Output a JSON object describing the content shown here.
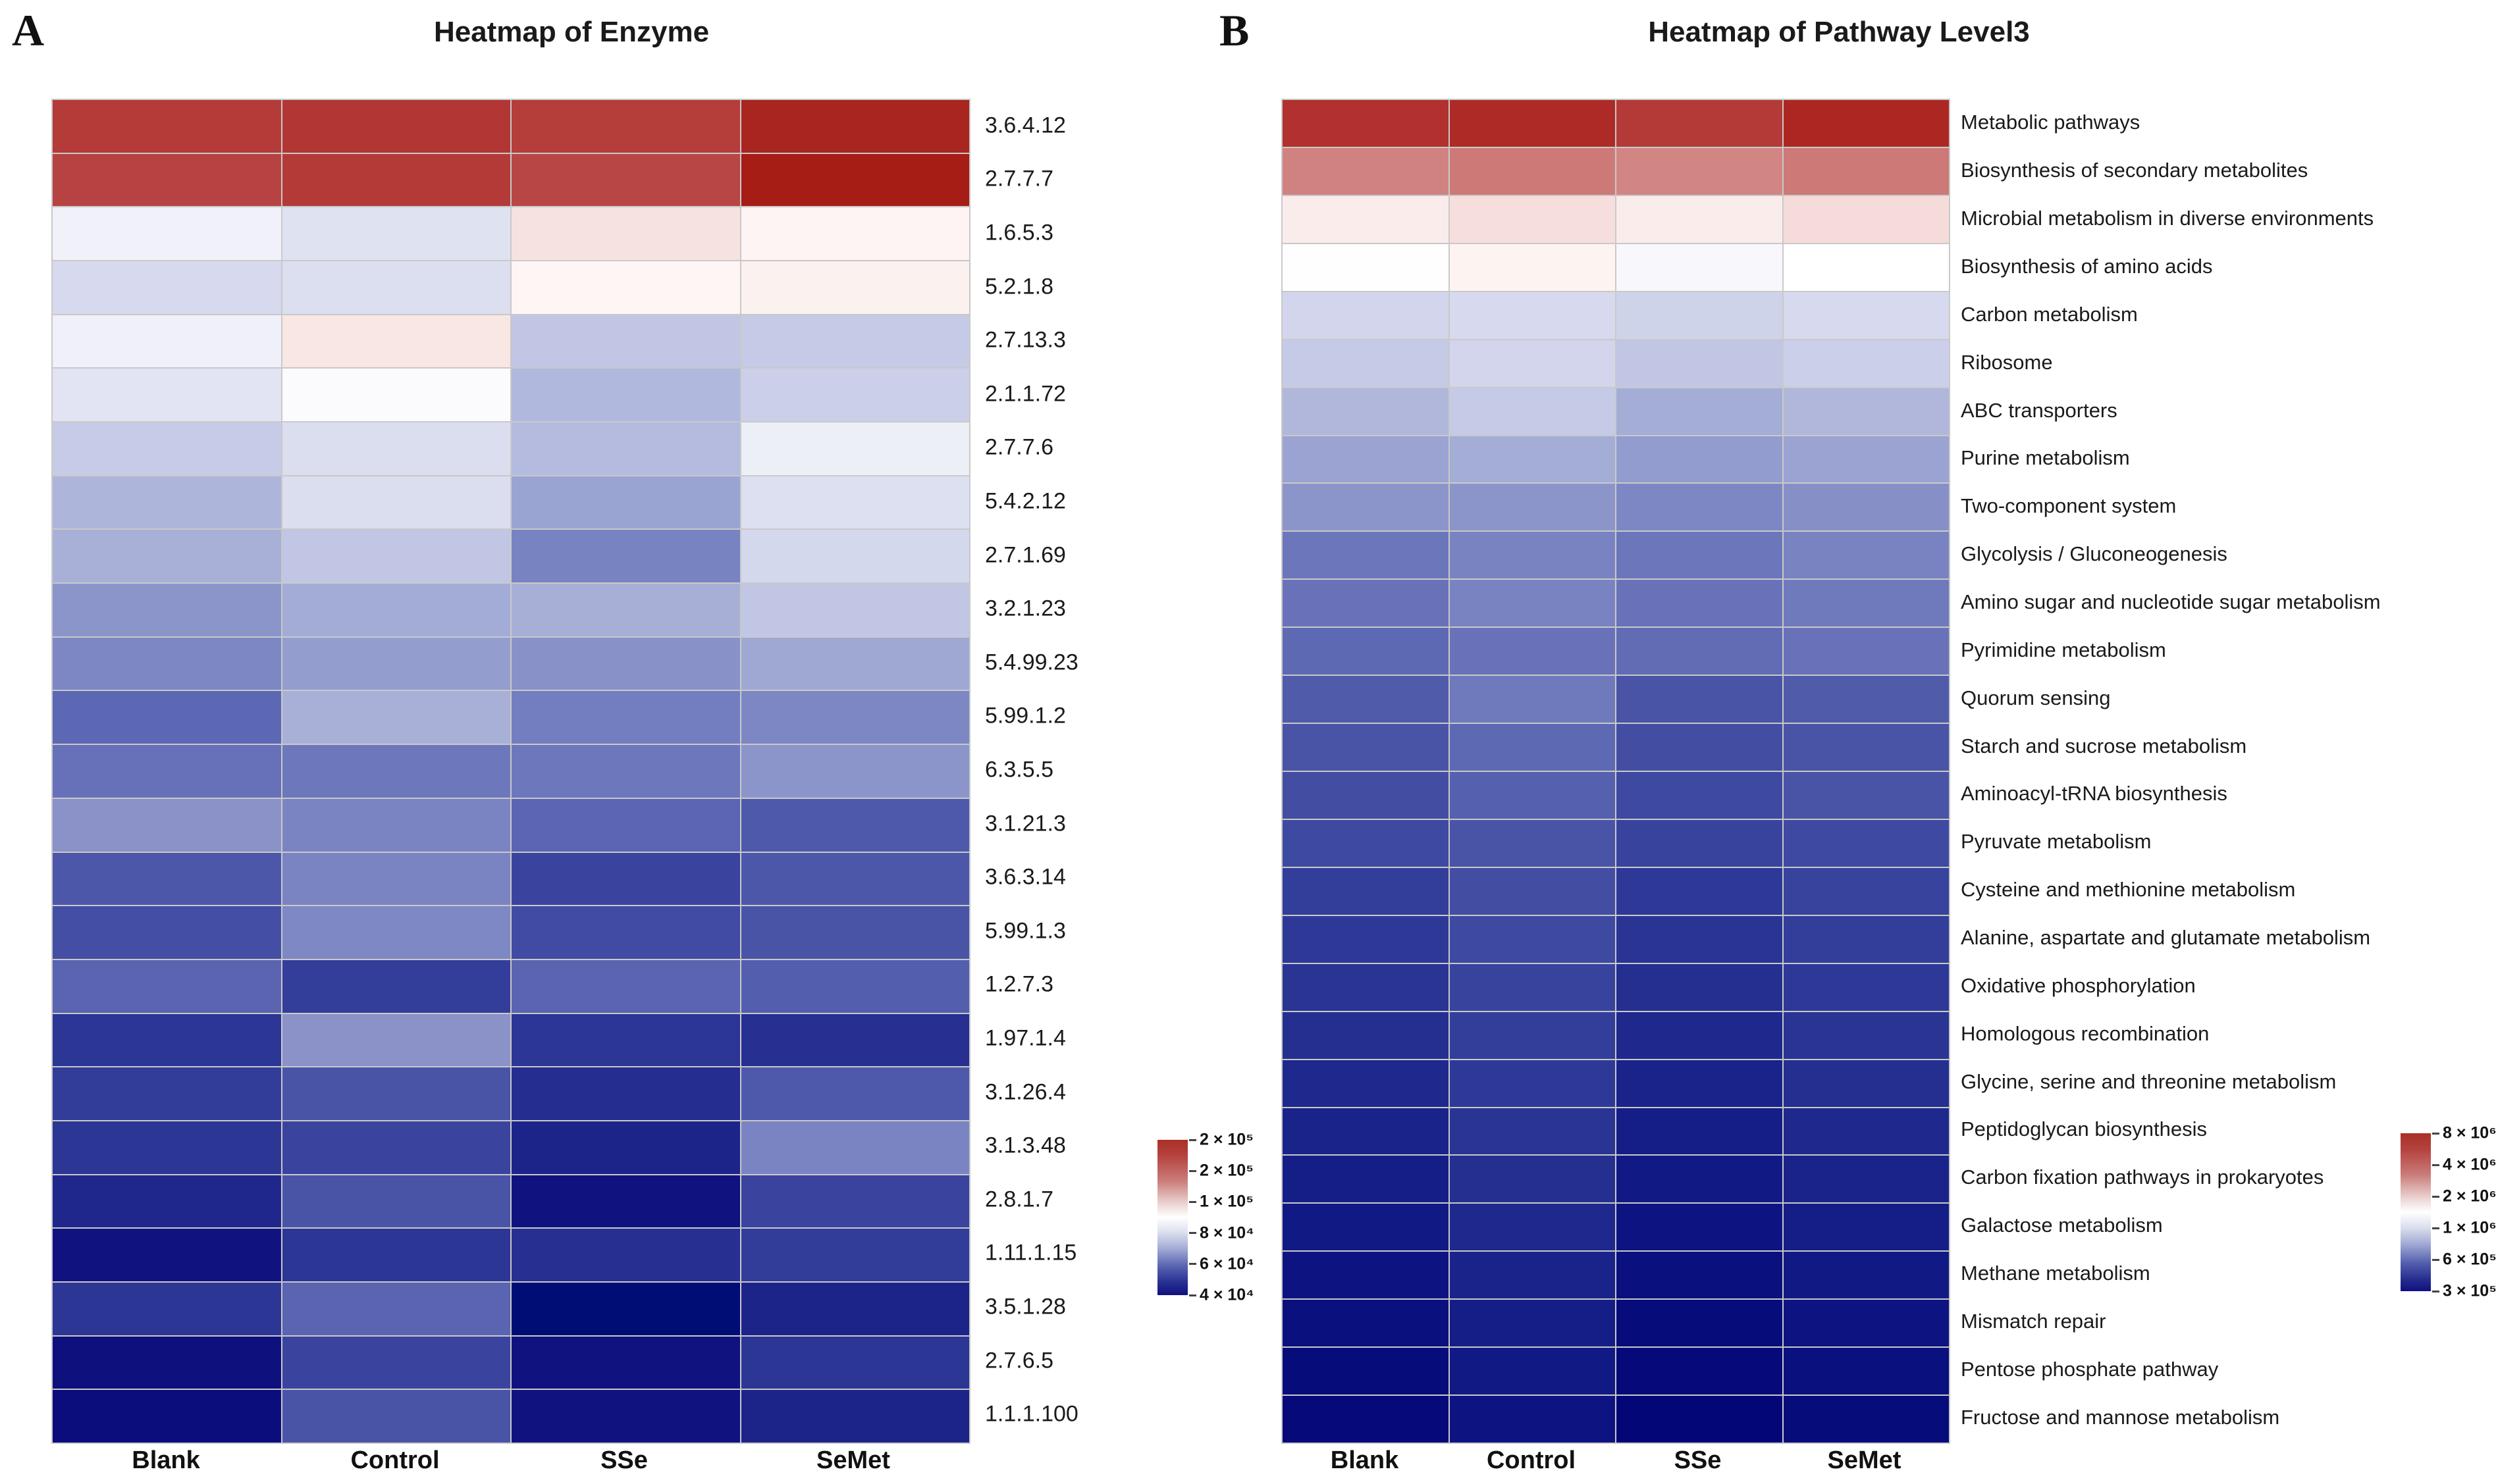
{
  "figure": {
    "background": "#ffffff"
  },
  "panel_a": {
    "letter": "A",
    "title": "Heatmap of Enzyme",
    "columns": [
      "Blank",
      "Control",
      "SSe",
      "SeMet"
    ],
    "legend_labels": [
      "2 × 10⁵",
      "2 × 10⁵",
      "1 × 10⁵",
      "8 × 10⁴",
      "6 × 10⁴",
      "4 × 10⁴"
    ]
  },
  "panel_b": {
    "letter": "B",
    "title": "Heatmap of Pathway Level3",
    "columns": [
      "Blank",
      "Control",
      "SSe",
      "SeMet"
    ],
    "legend_labels": [
      "8 × 10⁶",
      "4 × 10⁶",
      "2 × 10⁶",
      "1 × 10⁶",
      "6 × 10⁵",
      "3 × 10⁵"
    ]
  },
  "chart_data": [
    {
      "id": "a",
      "type": "heatmap",
      "title": "Heatmap of Enzyme",
      "columns": [
        "Blank",
        "Control",
        "SSe",
        "SeMet"
      ],
      "colorscale": "blue-white-red, log scale",
      "legend": {
        "position": "right-bottom",
        "tick_labels": [
          "2 × 10⁵",
          "2 × 10⁵",
          "1 × 10⁵",
          "8 × 10⁴",
          "6 × 10⁴",
          "4 × 10⁴"
        ],
        "min": 40000,
        "max": 240000,
        "gradient_stops": [
          "#a93026",
          "#c97b78",
          "#ffffff",
          "#a2abd5",
          "#101080"
        ]
      },
      "rows": [
        {
          "label": "3.6.4.12",
          "values": [
            200000,
            205000,
            198000,
            232000
          ],
          "colors": [
            "#b43b38",
            "#b23633",
            "#b53d3a",
            "#a9251f"
          ]
        },
        {
          "label": "2.7.7.7",
          "values": [
            192000,
            198000,
            188000,
            240000
          ],
          "colors": [
            "#b64341",
            "#b43a38",
            "#b74645",
            "#a61d15"
          ]
        },
        {
          "label": "1.6.5.3",
          "values": [
            88000,
            83000,
            97000,
            92000
          ],
          "colors": [
            "#f1f2f9",
            "#dfe2f1",
            "#f6e3e0",
            "#fdf4f3"
          ]
        },
        {
          "label": "5.2.1.8",
          "values": [
            80000,
            81000,
            93000,
            92000
          ],
          "colors": [
            "#d7daee",
            "#dcdff0",
            "#fdf6f5",
            "#fbf1ef"
          ]
        },
        {
          "label": "2.7.13.3",
          "values": [
            88000,
            95000,
            73000,
            74000
          ],
          "colors": [
            "#eff0f9",
            "#f9e7e4",
            "#c1c6e4",
            "#c5cae6"
          ]
        },
        {
          "label": "2.1.1.72",
          "values": [
            84000,
            90000,
            68000,
            75000
          ],
          "colors": [
            "#e2e4f3",
            "#fbfafd",
            "#b1b8dd",
            "#cccfe9"
          ]
        },
        {
          "label": "2.7.7.6",
          "values": [
            72000,
            79000,
            68000,
            86000
          ],
          "colors": [
            "#c7cbe7",
            "#dbdeef",
            "#b4bbdf",
            "#edeff7"
          ]
        },
        {
          "label": "5.4.2.12",
          "values": [
            66000,
            79000,
            63000,
            80000
          ],
          "colors": [
            "#adb5db",
            "#dadeef",
            "#9aa4d2",
            "#dde0f0"
          ]
        },
        {
          "label": "2.7.1.69",
          "values": [
            65000,
            73000,
            57000,
            78000
          ],
          "colors": [
            "#a8b0d8",
            "#c1c6e4",
            "#7883c2",
            "#d4d8ec"
          ]
        },
        {
          "label": "3.2.1.23",
          "values": [
            60000,
            64000,
            65000,
            73000
          ],
          "colors": [
            "#8c95ca",
            "#a3acd6",
            "#a7afd7",
            "#c1c6e4"
          ]
        },
        {
          "label": "5.4.99.23",
          "values": [
            57000,
            61000,
            60000,
            63000
          ],
          "colors": [
            "#7c87c4",
            "#939dce",
            "#8992c8",
            "#9fa8d3"
          ]
        },
        {
          "label": "5.99.1.2",
          "values": [
            52000,
            65000,
            56000,
            57000
          ],
          "colors": [
            "#5c68b3",
            "#a8b0d8",
            "#737ec0",
            "#7c87c4"
          ]
        },
        {
          "label": "6.3.5.5",
          "values": [
            54000,
            55000,
            55000,
            60000
          ],
          "colors": [
            "#6771b9",
            "#6d78bc",
            "#6d78bc",
            "#8c95ca"
          ]
        },
        {
          "label": "3.1.21.3",
          "values": [
            59000,
            57000,
            52000,
            50000
          ],
          "colors": [
            "#8a92c8",
            "#7b84c2",
            "#5b65b1",
            "#4f59ab"
          ]
        },
        {
          "label": "3.6.3.14",
          "values": [
            50000,
            57000,
            47000,
            50000
          ],
          "colors": [
            "#4d57a9",
            "#7b84c2",
            "#3a449f",
            "#4d57a9"
          ]
        },
        {
          "label": "5.99.1.3",
          "values": [
            48000,
            58000,
            48000,
            49000
          ],
          "colors": [
            "#444ea4",
            "#7e88c4",
            "#414ba3",
            "#4a54a7"
          ]
        },
        {
          "label": "1.2.7.3",
          "values": [
            52000,
            46000,
            52000,
            51000
          ],
          "colors": [
            "#5a64b0",
            "#333d9a",
            "#5a64b0",
            "#545eae"
          ]
        },
        {
          "label": "1.97.1.4",
          "values": [
            45000,
            59000,
            45000,
            44000
          ],
          "colors": [
            "#2c3694",
            "#8a92c8",
            "#2c3694",
            "#272f91"
          ]
        },
        {
          "label": "3.1.26.4",
          "values": [
            46000,
            49000,
            44000,
            50000
          ],
          "colors": [
            "#323c99",
            "#4a54a7",
            "#252d90",
            "#4f59ab"
          ]
        },
        {
          "label": "3.1.3.48",
          "values": [
            45000,
            47000,
            43000,
            57000
          ],
          "colors": [
            "#2c3694",
            "#3a449f",
            "#1d2489",
            "#7b84c2"
          ]
        },
        {
          "label": "2.8.1.7",
          "values": [
            43000,
            49000,
            41000,
            47000
          ],
          "colors": [
            "#20278c",
            "#4a54a7",
            "#10137f",
            "#3a449f"
          ]
        },
        {
          "label": "1.11.1.15",
          "values": [
            41000,
            45000,
            44000,
            46000
          ],
          "colors": [
            "#10137f",
            "#2c3694",
            "#272f91",
            "#323c99"
          ]
        },
        {
          "label": "3.5.1.28",
          "values": [
            45000,
            52000,
            40000,
            43000
          ],
          "colors": [
            "#2c3694",
            "#5a64b0",
            "#000d75",
            "#1d2489"
          ]
        },
        {
          "label": "2.7.6.5",
          "values": [
            41000,
            47000,
            41000,
            45000
          ],
          "colors": [
            "#0d107d",
            "#3a449f",
            "#10137f",
            "#2c3694"
          ]
        },
        {
          "label": "1.1.1.100",
          "values": [
            40000,
            49000,
            41000,
            43000
          ],
          "colors": [
            "#0a0d7b",
            "#4a54a7",
            "#10137f",
            "#1d2489"
          ]
        }
      ]
    },
    {
      "id": "b",
      "type": "heatmap",
      "title": "Heatmap of Pathway Level3",
      "columns": [
        "Blank",
        "Control",
        "SSe",
        "SeMet"
      ],
      "colorscale": "blue-white-red, log scale",
      "legend": {
        "position": "right-bottom",
        "tick_labels": [
          "8 × 10⁶",
          "4 × 10⁶",
          "2 × 10⁶",
          "1 × 10⁶",
          "6 × 10⁵",
          "3 × 10⁵"
        ],
        "min": 300000,
        "max": 9000000,
        "gradient_stops": [
          "#a93026",
          "#c97b78",
          "#ffffff",
          "#a2abd5",
          "#101080"
        ]
      },
      "rows": [
        {
          "label": "Metabolic pathways",
          "values": [
            8500000,
            8800000,
            8200000,
            8900000
          ],
          "colors": [
            "#b2302d",
            "#ae2a26",
            "#b43a37",
            "#ad2722"
          ]
        },
        {
          "label": "Biosynthesis of secondary metabolites",
          "values": [
            4500000,
            4700000,
            4400000,
            4700000
          ],
          "colors": [
            "#d08280",
            "#cd7977",
            "#d18684",
            "#cd7977"
          ]
        },
        {
          "label": "Microbial metabolism in diverse environments",
          "values": [
            1800000,
            2000000,
            1800000,
            2050000
          ],
          "colors": [
            "#faeceb",
            "#f6dedd",
            "#faeceb",
            "#f5dbda"
          ]
        },
        {
          "label": "Biosynthesis of amino acids",
          "values": [
            1500000,
            1600000,
            1450000,
            1500000
          ],
          "colors": [
            "#fefefe",
            "#fdf3f1",
            "#f8f8fc",
            "#ffffff"
          ]
        },
        {
          "label": "Carbon metabolism",
          "values": [
            1050000,
            1020000,
            1080000,
            1020000
          ],
          "colors": [
            "#d2d5eb",
            "#d7daee",
            "#cfd3ea",
            "#d7daee"
          ]
        },
        {
          "label": "Ribosome",
          "values": [
            980000,
            1050000,
            960000,
            1000000
          ],
          "colors": [
            "#c5cae6",
            "#d2d5eb",
            "#c1c6e4",
            "#cccfe9"
          ]
        },
        {
          "label": "ABC transporters",
          "values": [
            880000,
            980000,
            840000,
            880000
          ],
          "colors": [
            "#b0b7db",
            "#c5cae6",
            "#a4add6",
            "#b0b7db"
          ]
        },
        {
          "label": "Purine metabolism",
          "values": [
            780000,
            840000,
            760000,
            780000
          ],
          "colors": [
            "#9aa3d1",
            "#a4add6",
            "#929cce",
            "#9aa3d1"
          ]
        },
        {
          "label": "Two-component system",
          "values": [
            720000,
            720000,
            680000,
            700000
          ],
          "colors": [
            "#8b95c9",
            "#8b95c9",
            "#7d87c3",
            "#8690c6"
          ]
        },
        {
          "label": "Glycolysis / Gluconeogenesis",
          "values": [
            620000,
            660000,
            620000,
            660000
          ],
          "colors": [
            "#6b76bb",
            "#7983c1",
            "#6b76bb",
            "#7983c1"
          ]
        },
        {
          "label": "Amino sugar and nucleotide sugar metabolism",
          "values": [
            615000,
            660000,
            615000,
            635000
          ],
          "colors": [
            "#6972b9",
            "#7983c1",
            "#6972b9",
            "#6f7abc"
          ]
        },
        {
          "label": "Pyrimidine metabolism",
          "values": [
            590000,
            615000,
            600000,
            615000
          ],
          "colors": [
            "#5e69b4",
            "#6972b9",
            "#616cb5",
            "#6972b9"
          ]
        },
        {
          "label": "Quorum sensing",
          "values": [
            555000,
            635000,
            540000,
            555000
          ],
          "colors": [
            "#505baa",
            "#6f7abc",
            "#4954a7",
            "#505baa"
          ]
        },
        {
          "label": "Starch and sucrose metabolism",
          "values": [
            540000,
            590000,
            525000,
            540000
          ],
          "colors": [
            "#4954a7",
            "#5e69b4",
            "#434ea3",
            "#4954a7"
          ]
        },
        {
          "label": "Aminoacyl-tRNA biosynthesis",
          "values": [
            525000,
            565000,
            515000,
            540000
          ],
          "colors": [
            "#434ea3",
            "#5560ae",
            "#3e49a1",
            "#4954a7"
          ]
        },
        {
          "label": "Pyruvate metabolism",
          "values": [
            515000,
            540000,
            500000,
            515000
          ],
          "colors": [
            "#3e49a1",
            "#4954a7",
            "#38439d",
            "#3e49a1"
          ]
        },
        {
          "label": "Cysteine and methionine metabolism",
          "values": [
            490000,
            525000,
            480000,
            500000
          ],
          "colors": [
            "#333e9a",
            "#434ea3",
            "#2e3997",
            "#38439d"
          ]
        },
        {
          "label": "Alanine, aspartate and glutamate metabolism",
          "values": [
            480000,
            515000,
            470000,
            490000
          ],
          "colors": [
            "#2e3997",
            "#3e49a1",
            "#293493",
            "#333e9a"
          ]
        },
        {
          "label": "Oxidative phosphorylation",
          "values": [
            470000,
            500000,
            460000,
            480000
          ],
          "colors": [
            "#293493",
            "#38439d",
            "#242f90",
            "#2e3997"
          ]
        },
        {
          "label": "Homologous recombination",
          "values": [
            460000,
            490000,
            450000,
            470000
          ],
          "colors": [
            "#242f90",
            "#333e9a",
            "#1f288d",
            "#293493"
          ]
        },
        {
          "label": "Glycine, serine and threonine metabolism",
          "values": [
            450000,
            480000,
            440000,
            460000
          ],
          "colors": [
            "#1f288d",
            "#2e3997",
            "#1a238a",
            "#242f90"
          ]
        },
        {
          "label": "Peptidoglycan biosynthesis",
          "values": [
            440000,
            470000,
            430000,
            450000
          ],
          "colors": [
            "#1a238a",
            "#293493",
            "#151e87",
            "#1f288d"
          ]
        },
        {
          "label": "Carbon fixation pathways in prokaryotes",
          "values": [
            430000,
            460000,
            420000,
            440000
          ],
          "colors": [
            "#151e87",
            "#242f90",
            "#111984",
            "#1a238a"
          ]
        },
        {
          "label": "Galactose metabolism",
          "values": [
            420000,
            450000,
            410000,
            430000
          ],
          "colors": [
            "#111984",
            "#1f288d",
            "#0d1481",
            "#151e87"
          ]
        },
        {
          "label": "Methane metabolism",
          "values": [
            410000,
            440000,
            400000,
            420000
          ],
          "colors": [
            "#0d1481",
            "#1a238a",
            "#0a107e",
            "#111984"
          ]
        },
        {
          "label": "Mismatch repair",
          "values": [
            400000,
            430000,
            390000,
            410000
          ],
          "colors": [
            "#0a107e",
            "#151e87",
            "#070c7b",
            "#0d1481"
          ]
        },
        {
          "label": "Pentose phosphate pathway",
          "values": [
            390000,
            420000,
            380000,
            400000
          ],
          "colors": [
            "#070c7b",
            "#111984",
            "#050979",
            "#0a107e"
          ]
        },
        {
          "label": "Fructose and mannose metabolism",
          "values": [
            380000,
            410000,
            370000,
            390000
          ],
          "colors": [
            "#050979",
            "#0d1481",
            "#030677",
            "#070c7b"
          ]
        }
      ]
    }
  ]
}
